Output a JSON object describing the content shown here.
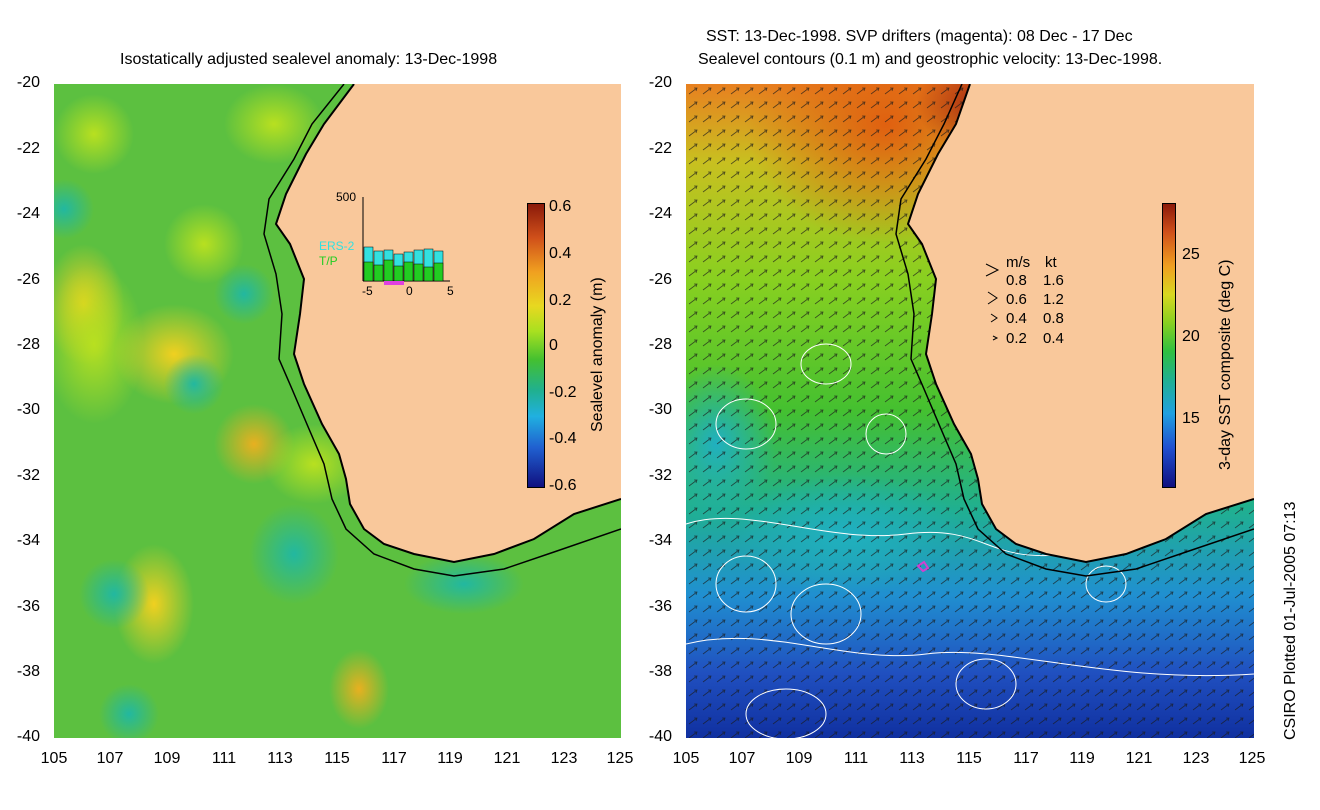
{
  "left_panel": {
    "title": "Isostatically adjusted sealevel anomaly: 13-Dec-1998",
    "colorbar": {
      "label": "Sealevel anomaly (m)",
      "ticks": [
        "0.6",
        "0.4",
        "0.2",
        "0",
        "-0.2",
        "-0.4",
        "-0.6"
      ]
    },
    "inset": {
      "ymax_label": "500",
      "series": [
        "ERS-2",
        "T/P"
      ],
      "xticks": [
        "-5",
        "0",
        "5"
      ],
      "colors": {
        "ers2": "#33e0e0",
        "tp": "#22cc22"
      }
    }
  },
  "right_panel": {
    "title_line1": "SST: 13-Dec-1998. SVP drifters (magenta): 08 Dec - 17 Dec",
    "title_line2": "Sealevel contours (0.1 m) and geostrophic velocity: 13-Dec-1998.",
    "colorbar": {
      "label": "3-day SST composite (deg C)",
      "ticks": [
        "25",
        "20",
        "15"
      ]
    },
    "speed_legend": {
      "header_ms": "m/s",
      "header_kt": "kt",
      "rows": [
        {
          "ms": "0.8",
          "kt": "1.6"
        },
        {
          "ms": "0.6",
          "kt": "1.2"
        },
        {
          "ms": "0.4",
          "kt": "0.8"
        },
        {
          "ms": "0.2",
          "kt": "0.4"
        }
      ]
    }
  },
  "axes": {
    "latitude_ticks": [
      "-20",
      "-22",
      "-24",
      "-26",
      "-28",
      "-30",
      "-32",
      "-34",
      "-36",
      "-38",
      "-40"
    ],
    "longitude_ticks": [
      "105",
      "107",
      "109",
      "111",
      "113",
      "115",
      "117",
      "119",
      "121",
      "123",
      "125"
    ]
  },
  "credit": "CSIRO Plotted 01-Jul-2005 07:13",
  "colors": {
    "land": "#f9c89b",
    "coast": "#000000",
    "sla_mid": "#66cc33",
    "drifter": "#d040d0"
  }
}
